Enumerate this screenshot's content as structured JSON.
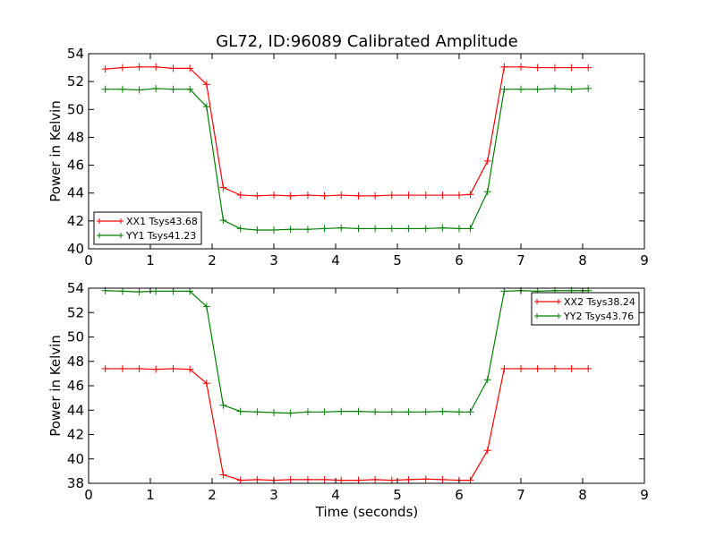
{
  "chart_data": {
    "type": "line",
    "title": "GL72, ID:96089 Calibrated Amplitude",
    "xlabel": "Time (seconds)",
    "marker": "+",
    "panels": [
      {
        "ylabel": "Power in Kelvin",
        "xlim": [
          0,
          9
        ],
        "ylim": [
          40,
          54
        ],
        "xticks": [
          "0",
          "1",
          "2",
          "3",
          "4",
          "5",
          "6",
          "7",
          "8",
          "9"
        ],
        "yticks": [
          "40",
          "42",
          "44",
          "46",
          "48",
          "50",
          "52",
          "54"
        ],
        "legend_position": "lower-left",
        "x": [
          0.27,
          0.55,
          0.82,
          1.09,
          1.37,
          1.64,
          1.91,
          2.18,
          2.46,
          2.73,
          3.0,
          3.27,
          3.55,
          3.82,
          4.09,
          4.37,
          4.64,
          4.91,
          5.18,
          5.46,
          5.73,
          6.0,
          6.18,
          6.46,
          6.73,
          7.0,
          7.27,
          7.55,
          7.82,
          8.09
        ],
        "series": [
          {
            "name": "XX1 Tsys43.68",
            "color": "#ff0000",
            "values": [
              52.9,
              53.0,
              53.05,
              53.05,
              52.95,
              52.95,
              51.8,
              44.4,
              43.85,
              43.8,
              43.85,
              43.8,
              43.85,
              43.8,
              43.85,
              43.8,
              43.8,
              43.85,
              43.85,
              43.85,
              43.85,
              43.85,
              43.9,
              46.3,
              53.05,
              53.05,
              53.0,
              53.0,
              53.0,
              53.0
            ]
          },
          {
            "name": "YY1 Tsys41.23",
            "color": "#008000",
            "values": [
              51.45,
              51.45,
              51.4,
              51.5,
              51.45,
              51.45,
              50.2,
              42.05,
              41.45,
              41.35,
              41.35,
              41.4,
              41.4,
              41.45,
              41.5,
              41.45,
              41.45,
              41.45,
              41.45,
              41.45,
              41.5,
              41.45,
              41.45,
              44.1,
              51.45,
              51.45,
              51.45,
              51.5,
              51.45,
              51.5
            ]
          }
        ]
      },
      {
        "ylabel": "Power in Kelvin",
        "xlabel": "Time (seconds)",
        "xlim": [
          0,
          9
        ],
        "ylim": [
          38,
          54
        ],
        "xticks": [
          "0",
          "1",
          "2",
          "3",
          "4",
          "5",
          "6",
          "7",
          "8",
          "9"
        ],
        "yticks": [
          "38",
          "40",
          "42",
          "44",
          "46",
          "48",
          "50",
          "52",
          "54"
        ],
        "legend_position": "top-right",
        "x": [
          0.27,
          0.55,
          0.82,
          1.09,
          1.37,
          1.64,
          1.91,
          2.18,
          2.46,
          2.73,
          3.0,
          3.27,
          3.55,
          3.82,
          4.09,
          4.37,
          4.64,
          4.91,
          5.18,
          5.46,
          5.73,
          6.0,
          6.18,
          6.46,
          6.73,
          7.0,
          7.27,
          7.55,
          7.82,
          8.09
        ],
        "series": [
          {
            "name": "XX2 Tsys38.24",
            "color": "#ff0000",
            "values": [
              47.4,
              47.4,
              47.4,
              47.35,
              47.4,
              47.35,
              46.2,
              38.7,
              38.25,
              38.3,
              38.25,
              38.3,
              38.3,
              38.3,
              38.25,
              38.25,
              38.3,
              38.25,
              38.3,
              38.35,
              38.3,
              38.25,
              38.25,
              40.7,
              47.4,
              47.4,
              47.4,
              47.4,
              47.4,
              47.4
            ]
          },
          {
            "name": "YY2 Tsys43.76",
            "color": "#008000",
            "values": [
              53.8,
              53.75,
              53.7,
              53.75,
              53.75,
              53.75,
              52.5,
              44.4,
              43.9,
              43.85,
              43.8,
              43.75,
              43.85,
              43.85,
              43.9,
              43.9,
              43.85,
              43.85,
              43.85,
              43.85,
              43.9,
              43.85,
              43.85,
              46.5,
              53.75,
              53.8,
              53.75,
              53.8,
              53.8,
              53.8
            ]
          }
        ]
      }
    ]
  }
}
